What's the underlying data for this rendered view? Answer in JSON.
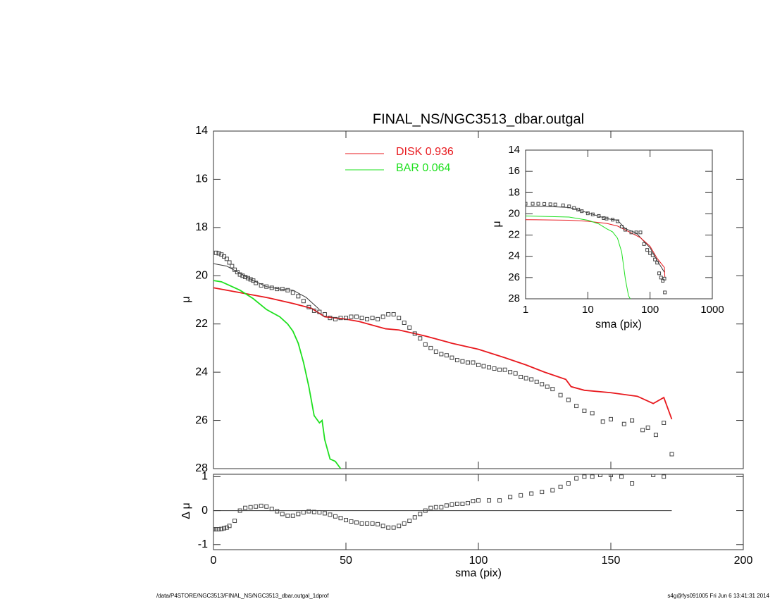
{
  "chart_data": [
    {
      "type": "scatter",
      "title": "FINAL_NS/NGC3513_dbar.outgal",
      "ylabel": "μ",
      "xlim": [
        0,
        200
      ],
      "ylim": [
        14,
        28
      ],
      "y_inverted": true,
      "yticks": [
        14,
        16,
        18,
        20,
        22,
        24,
        26,
        28
      ],
      "legend": "top-center",
      "points": {
        "color": "#444444",
        "x": [
          1,
          2,
          3,
          4,
          5,
          6,
          7,
          8,
          9,
          10,
          11,
          12,
          13,
          14,
          15,
          16,
          18,
          20,
          22,
          24,
          26,
          28,
          30,
          32,
          34,
          36,
          38,
          40,
          42,
          44,
          46,
          48,
          50,
          52,
          54,
          56,
          58,
          60,
          62,
          64,
          66,
          68,
          70,
          72,
          74,
          76,
          78,
          80,
          82,
          84,
          86,
          88,
          90,
          92,
          94,
          96,
          98,
          100,
          102,
          104,
          106,
          108,
          110,
          112,
          114,
          116,
          118,
          120,
          122,
          124,
          126,
          128,
          131,
          134,
          137,
          140,
          143,
          147,
          150,
          155,
          158,
          162,
          164,
          167,
          170,
          173
        ],
        "values": [
          19.05,
          19.07,
          19.12,
          19.2,
          19.3,
          19.45,
          19.6,
          19.75,
          19.85,
          19.95,
          20.0,
          20.05,
          20.1,
          20.15,
          20.2,
          20.3,
          20.4,
          20.45,
          20.5,
          20.55,
          20.55,
          20.6,
          20.7,
          20.85,
          21.05,
          21.3,
          21.45,
          21.5,
          21.6,
          21.75,
          21.8,
          21.75,
          21.75,
          21.7,
          21.7,
          21.75,
          21.8,
          21.75,
          21.8,
          21.7,
          21.6,
          21.6,
          21.75,
          21.95,
          22.15,
          22.4,
          22.6,
          22.85,
          23.0,
          23.15,
          23.25,
          23.3,
          23.4,
          23.5,
          23.55,
          23.6,
          23.6,
          23.7,
          23.75,
          23.8,
          23.85,
          23.9,
          23.9,
          24.0,
          24.05,
          24.2,
          24.25,
          24.3,
          24.4,
          24.5,
          24.6,
          24.7,
          24.95,
          25.15,
          25.4,
          25.6,
          25.7,
          26.05,
          25.95,
          26.15,
          26.0,
          26.4,
          26.3,
          26.6,
          26.1,
          27.4
        ]
      },
      "model": {
        "color": "#333333",
        "x": [
          0,
          5,
          10,
          15,
          20,
          25,
          30,
          35,
          40
        ],
        "values": [
          19.5,
          19.6,
          19.9,
          20.2,
          20.45,
          20.55,
          20.6,
          20.9,
          21.4
        ]
      },
      "series": [
        {
          "name": "DISK  0.936",
          "color": "#e8191e",
          "x": [
            0,
            10,
            20,
            30,
            37,
            42,
            50,
            55,
            65,
            70,
            80,
            90,
            100,
            110,
            118,
            125,
            133,
            135,
            140,
            150,
            160,
            166,
            170,
            173
          ],
          "values": [
            20.5,
            20.7,
            20.9,
            21.15,
            21.35,
            21.7,
            21.8,
            21.9,
            22.2,
            22.25,
            22.5,
            22.8,
            23.05,
            23.4,
            23.7,
            24.0,
            24.3,
            24.6,
            24.75,
            24.85,
            25.0,
            25.3,
            25.05,
            25.95
          ]
        },
        {
          "name": "BAR  0.064",
          "color": "#1fe01f",
          "x": [
            0,
            3,
            6,
            10,
            15,
            20,
            25,
            28,
            30,
            32,
            34,
            36,
            38,
            40,
            41,
            42,
            44,
            46,
            48
          ],
          "values": [
            20.2,
            20.25,
            20.4,
            20.6,
            20.95,
            21.4,
            21.7,
            22.0,
            22.3,
            22.8,
            23.6,
            24.6,
            25.8,
            26.1,
            26.0,
            26.8,
            27.6,
            27.7,
            28.0
          ]
        }
      ]
    },
    {
      "type": "residual",
      "ylabel": "Δ μ",
      "xlabel": "sma (pix)",
      "xlim": [
        0,
        200
      ],
      "ylim": [
        -1.15,
        1.07
      ],
      "xticks": [
        0,
        50,
        100,
        150,
        200
      ],
      "yticks": [
        -1,
        0,
        1
      ],
      "hline": {
        "y": 0,
        "x": [
          0,
          173
        ]
      },
      "points": {
        "color": "#444444",
        "x": [
          0,
          1,
          2,
          3,
          4,
          5,
          6,
          8,
          10,
          12,
          14,
          16,
          18,
          20,
          22,
          24,
          26,
          28,
          30,
          32,
          34,
          36,
          38,
          40,
          42,
          44,
          46,
          48,
          50,
          52,
          54,
          56,
          58,
          60,
          62,
          64,
          66,
          68,
          70,
          72,
          74,
          76,
          78,
          80,
          82,
          84,
          86,
          88,
          90,
          92,
          94,
          96,
          98,
          100,
          104,
          108,
          112,
          116,
          120,
          124,
          128,
          131,
          134,
          137,
          140,
          143,
          146,
          150,
          154,
          158,
          166,
          170
        ],
        "values": [
          -0.55,
          -0.55,
          -0.55,
          -0.54,
          -0.52,
          -0.5,
          -0.45,
          -0.3,
          0.0,
          0.08,
          0.1,
          0.12,
          0.14,
          0.12,
          0.05,
          -0.02,
          -0.1,
          -0.15,
          -0.15,
          -0.1,
          -0.05,
          -0.02,
          -0.04,
          -0.05,
          -0.08,
          -0.12,
          -0.17,
          -0.22,
          -0.28,
          -0.32,
          -0.35,
          -0.38,
          -0.38,
          -0.38,
          -0.4,
          -0.45,
          -0.5,
          -0.5,
          -0.45,
          -0.38,
          -0.3,
          -0.2,
          -0.1,
          0.0,
          0.08,
          0.1,
          0.1,
          0.15,
          0.18,
          0.2,
          0.2,
          0.22,
          0.28,
          0.3,
          0.3,
          0.3,
          0.4,
          0.45,
          0.5,
          0.55,
          0.6,
          0.7,
          0.8,
          0.95,
          1.0,
          1.0,
          1.05,
          1.05,
          1.0,
          0.8,
          1.05,
          1.0
        ]
      }
    },
    {
      "type": "scatter",
      "ylabel": "μ",
      "xlabel": "sma (pix)",
      "log_x": true,
      "xlim": [
        1,
        1000
      ],
      "ylim": [
        14,
        28
      ],
      "y_inverted": true,
      "xticks": [
        1,
        10,
        100,
        1000
      ],
      "yticks": [
        14,
        16,
        18,
        20,
        22,
        24,
        26,
        28
      ],
      "points": {
        "color": "#444444",
        "x": [
          1,
          1.3,
          1.6,
          2,
          2.5,
          3,
          4,
          5,
          6,
          7,
          8,
          10,
          12,
          15,
          18,
          20,
          25,
          30,
          35,
          40,
          50,
          60,
          70,
          80,
          90,
          100,
          110,
          120,
          130,
          140,
          150,
          160,
          170,
          173
        ],
        "values": [
          19.05,
          19.05,
          19.05,
          19.07,
          19.1,
          19.12,
          19.2,
          19.3,
          19.45,
          19.6,
          19.75,
          19.95,
          20.05,
          20.2,
          20.4,
          20.45,
          20.55,
          20.7,
          21.2,
          21.5,
          21.75,
          21.75,
          21.75,
          22.85,
          23.4,
          23.7,
          23.9,
          24.3,
          24.6,
          25.6,
          26.0,
          26.3,
          26.1,
          27.4
        ]
      },
      "model": {
        "color": "#333333",
        "x": [
          1,
          2,
          5,
          10,
          20,
          30,
          40,
          60,
          80,
          100,
          130,
          170
        ],
        "values": [
          19.3,
          19.3,
          19.4,
          19.9,
          20.45,
          20.6,
          21.4,
          21.8,
          22.6,
          23.2,
          24.4,
          25.5
        ]
      },
      "series": [
        {
          "color": "#e8191e",
          "x": [
            1,
            5,
            10,
            20,
            30,
            50,
            70,
            100,
            130,
            170,
            173
          ],
          "values": [
            20.55,
            20.6,
            20.7,
            20.9,
            21.15,
            21.8,
            22.25,
            23.05,
            24.2,
            25.05,
            25.95
          ]
        },
        {
          "color": "#1fe01f",
          "x": [
            1,
            5,
            10,
            15,
            20,
            25,
            30,
            35,
            40,
            45,
            48
          ],
          "values": [
            20.2,
            20.3,
            20.6,
            20.95,
            21.4,
            21.7,
            22.3,
            23.6,
            26.1,
            27.7,
            28.0
          ]
        }
      ]
    }
  ],
  "footer": {
    "left": "/data/P4STORE/NGC3513/FINAL_NS/NGC3513_dbar.outgal_1dprof",
    "right": "s4g@fys091005  Fri Jun  6 13:41:31 2014"
  }
}
